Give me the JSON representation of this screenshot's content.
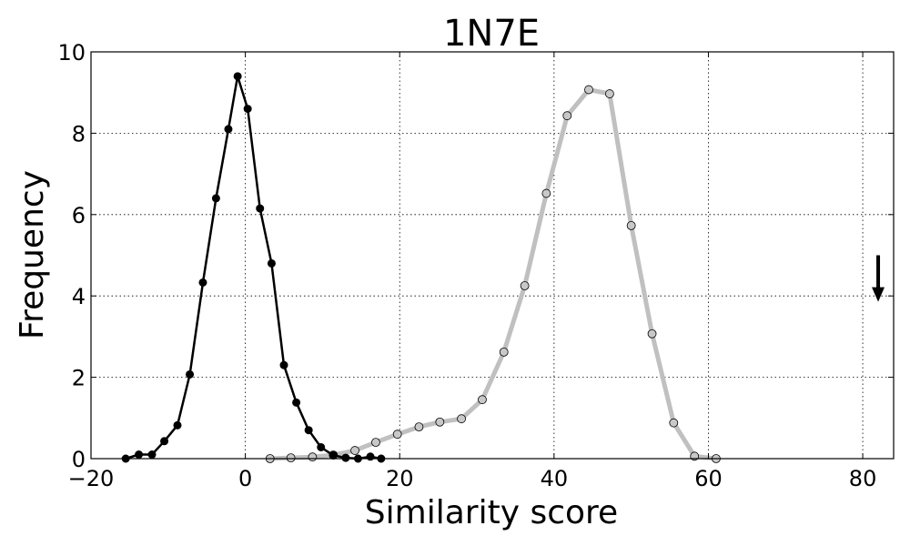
{
  "chart_data": {
    "type": "line",
    "title": "1N7E",
    "xlabel": "Similarity score",
    "ylabel": "Frequency",
    "xlim": [
      -20,
      84
    ],
    "ylim": [
      0,
      10
    ],
    "xticks": [
      -20,
      0,
      20,
      40,
      60,
      80
    ],
    "xtick_labels": [
      "−20",
      "0",
      "20",
      "40",
      "60",
      "80"
    ],
    "yticks": [
      0,
      2,
      4,
      6,
      8,
      10
    ],
    "ytick_labels": [
      "0",
      "2",
      "4",
      "6",
      "8",
      "10"
    ],
    "grid": true,
    "series": [
      {
        "color": "#000000",
        "marker_fill": "#000000",
        "x": [
          -15.5,
          -13.8,
          -12.1,
          -10.5,
          -8.8,
          -7.2,
          -5.5,
          -3.8,
          -2.2,
          -1.0,
          0.3,
          1.9,
          3.4,
          5.0,
          6.6,
          8.2,
          9.8,
          11.4,
          13.0,
          14.6,
          16.2,
          17.6
        ],
        "y": [
          0.0,
          0.1,
          0.1,
          0.43,
          0.82,
          2.07,
          4.33,
          6.4,
          8.1,
          9.4,
          8.6,
          6.15,
          4.8,
          2.3,
          1.38,
          0.7,
          0.28,
          0.08,
          0.02,
          0.0,
          0.05,
          0.0
        ]
      },
      {
        "color": "#c0c0c0",
        "marker_fill": "#c8c8c8",
        "x": [
          3.2,
          5.9,
          8.7,
          11.4,
          14.2,
          16.9,
          19.7,
          22.5,
          25.2,
          28.0,
          30.7,
          33.5,
          36.2,
          39.0,
          41.7,
          44.5,
          47.2,
          50.0,
          52.7,
          55.5,
          58.2,
          61.0
        ],
        "y": [
          0.0,
          0.02,
          0.04,
          0.09,
          0.2,
          0.4,
          0.6,
          0.78,
          0.9,
          0.98,
          1.45,
          2.62,
          4.25,
          6.52,
          8.43,
          9.07,
          8.97,
          5.73,
          3.07,
          0.88,
          0.06,
          0.0
        ]
      }
    ],
    "annotations": [
      {
        "type": "arrow-down",
        "x": 82,
        "y_from": 5.0,
        "y_to": 3.9,
        "color": "#000000"
      }
    ]
  }
}
